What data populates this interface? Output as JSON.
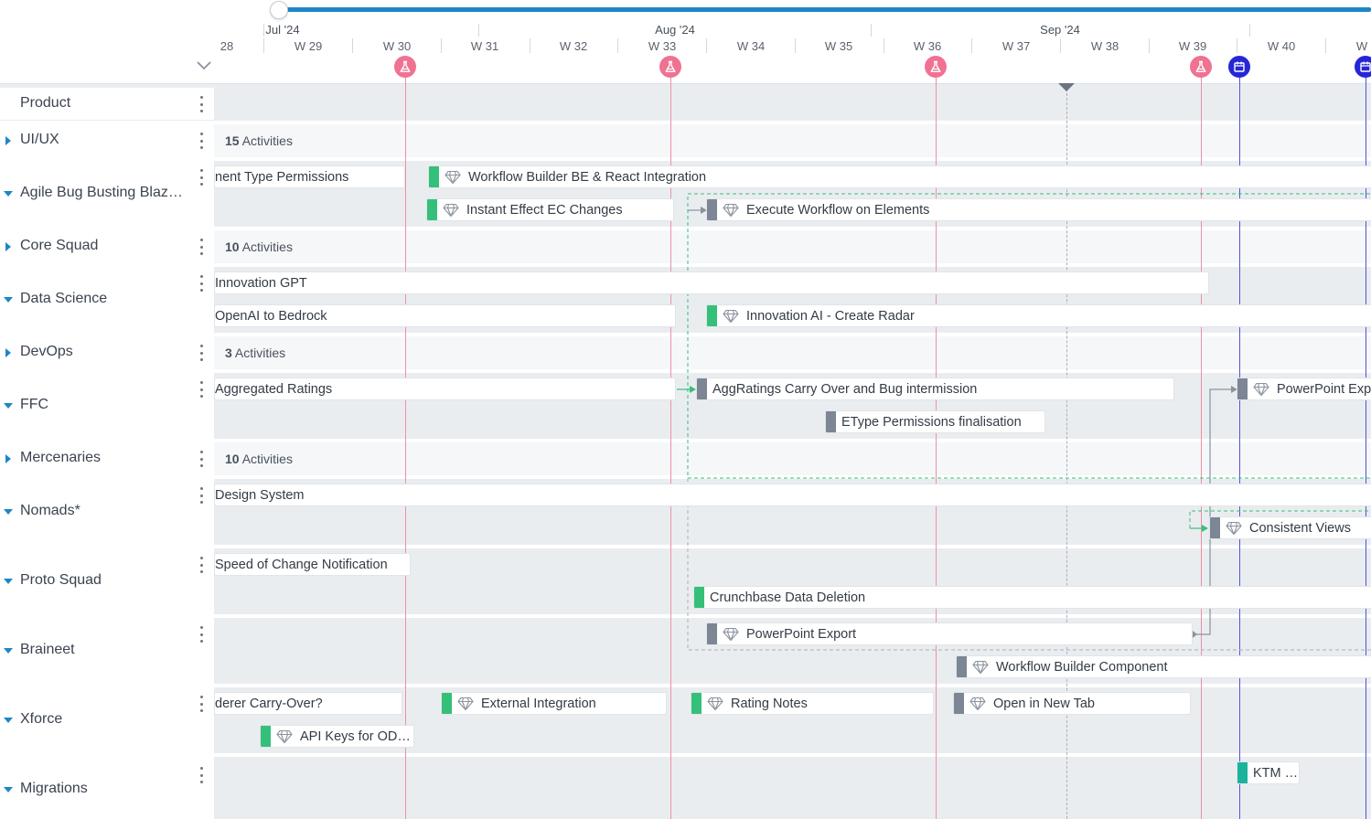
{
  "timeline": {
    "months": [
      "Jul '24",
      "Aug '24",
      "Sep '24"
    ],
    "weeks": [
      "28",
      "W 29",
      "W 30",
      "W 31",
      "W 32",
      "W 33",
      "W 34",
      "W 35",
      "W 36",
      "W 37",
      "W 38",
      "W 39",
      "W 40",
      "W"
    ],
    "milestone_icon": "flask-icon",
    "release_icon": "calendar-icon"
  },
  "colors": {
    "milestone": "#ef7293",
    "milestone_line": "#ee8fa6",
    "release": "#2626d8",
    "release_line": "#5252d6",
    "green": "#35c07a",
    "gray": "#7c8694",
    "teal": "#1cb39c",
    "accent": "#1d86c6",
    "link_green": "#35c07a",
    "link_gray": "#8a939e"
  },
  "lanes": [
    {
      "name": "Product",
      "caret": ""
    },
    {
      "name": "UI/UX",
      "caret": "right",
      "count": "15",
      "count_suffix": "Activities"
    },
    {
      "name": "Agile Bug Busting Blaz…",
      "caret": "down"
    },
    {
      "name": "Core Squad",
      "caret": "right",
      "count": "10",
      "count_suffix": "Activities"
    },
    {
      "name": "Data Science",
      "caret": "down"
    },
    {
      "name": "DevOps",
      "caret": "right",
      "count": "3",
      "count_suffix": "Activities"
    },
    {
      "name": "FFC",
      "caret": "down"
    },
    {
      "name": "Mercenaries",
      "caret": "right",
      "count": "10",
      "count_suffix": "Activities"
    },
    {
      "name": "Nomads*",
      "caret": "down"
    },
    {
      "name": "Proto Squad",
      "caret": "down"
    },
    {
      "name": "Braineet",
      "caret": "down"
    },
    {
      "name": "Xforce",
      "caret": "down"
    },
    {
      "name": "Migrations",
      "caret": "down"
    }
  ],
  "bars": [
    {
      "label": "nent Type Permissions",
      "stub": "",
      "gem": false
    },
    {
      "label": "Workflow Builder BE & React Integration",
      "stub": "green",
      "gem": true
    },
    {
      "label": "Instant Effect EC Changes",
      "stub": "green",
      "gem": true
    },
    {
      "label": "Execute Workflow on Elements",
      "stub": "gray",
      "gem": true
    },
    {
      "label": "Innovation GPT",
      "stub": "",
      "gem": false
    },
    {
      "label": "OpenAI to Bedrock",
      "stub": "",
      "gem": false
    },
    {
      "label": "Innovation AI - Create Radar",
      "stub": "green",
      "gem": true
    },
    {
      "label": "Aggregated Ratings",
      "stub": "",
      "gem": false
    },
    {
      "label": "AggRatings Carry Over and Bug intermission",
      "stub": "gray",
      "gem": false
    },
    {
      "label": "PowerPoint Exp",
      "stub": "gray",
      "gem": true
    },
    {
      "label": "EType Permissions finalisation",
      "stub": "gray",
      "gem": false
    },
    {
      "label": "Design System",
      "stub": "",
      "gem": false
    },
    {
      "label": "Consistent Views",
      "stub": "gray",
      "gem": true
    },
    {
      "label": "Speed of Change Notification",
      "stub": "",
      "gem": false
    },
    {
      "label": "Crunchbase Data Deletion",
      "stub": "green",
      "gem": false
    },
    {
      "label": "PowerPoint Export",
      "stub": "gray",
      "gem": true
    },
    {
      "label": "Workflow Builder Component",
      "stub": "gray",
      "gem": true
    },
    {
      "label": "derer Carry-Over?",
      "stub": "",
      "gem": false
    },
    {
      "label": "External Integration",
      "stub": "green",
      "gem": true
    },
    {
      "label": "Rating Notes",
      "stub": "green",
      "gem": true
    },
    {
      "label": "Open in New Tab",
      "stub": "gray",
      "gem": true
    },
    {
      "label": "API Keys for OD…",
      "stub": "green",
      "gem": true
    },
    {
      "label": "KTM …",
      "stub": "teal",
      "gem": false
    }
  ]
}
